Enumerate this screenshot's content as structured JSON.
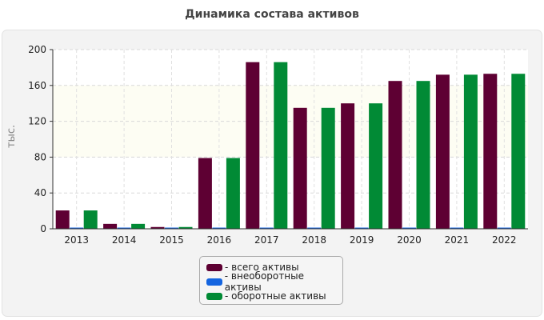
{
  "chart_data": {
    "type": "bar",
    "title": "Динамика состава активов",
    "ylabel": "тыс.",
    "ylim": [
      0,
      200
    ],
    "yticks": [
      0,
      40,
      80,
      120,
      160,
      200
    ],
    "grid": true,
    "legend_position": "bottom-center",
    "categories": [
      "2013",
      "2014",
      "2015",
      "2016",
      "2017",
      "2018",
      "2019",
      "2020",
      "2021",
      "2022"
    ],
    "series": [
      {
        "name": "- всего активы",
        "color": "#5e0033",
        "values": [
          20.5,
          5.5,
          2,
          79,
          186,
          135,
          140,
          165,
          172,
          173
        ]
      },
      {
        "name": "- внеоборотные активы",
        "color": "#1565e0",
        "values": [
          0.5,
          0.5,
          0.5,
          0.5,
          0.5,
          0.5,
          0.5,
          0.5,
          0.5,
          0.5
        ]
      },
      {
        "name": "- оборотные активы",
        "color": "#018a35",
        "values": [
          20.5,
          5.5,
          2,
          79,
          186,
          135,
          140,
          165,
          172,
          173
        ]
      }
    ]
  }
}
